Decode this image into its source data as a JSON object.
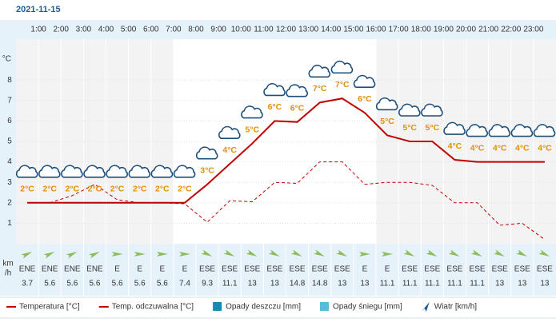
{
  "chart_data": {
    "type": "line",
    "date": "2021-11-15",
    "categories": [
      null,
      "1:00",
      "2:00",
      "3:00",
      "4:00",
      "5:00",
      "6:00",
      "7:00",
      "8:00",
      "9:00",
      "10:00",
      "11:00",
      "12:00",
      "13:00",
      "14:00",
      "15:00",
      "16:00",
      "17:00",
      "18:00",
      "19:00",
      "20:00",
      "21:00",
      "22:00",
      "23:00"
    ],
    "ylabel": "°C",
    "ylim": [
      0,
      10
    ],
    "yticks": [
      1,
      2,
      3,
      4,
      5,
      6,
      7,
      8
    ],
    "grid": true,
    "series": [
      {
        "name": "Temperatura [°C]",
        "color": "#c00000",
        "dash": false,
        "values": [
          2.0,
          2.0,
          2.0,
          2.0,
          2.0,
          2.0,
          2.0,
          2.0,
          2.9,
          3.9,
          4.9,
          6.0,
          5.95,
          6.9,
          7.1,
          6.4,
          5.3,
          5.0,
          5.0,
          4.1,
          4.0,
          4.0,
          4.0,
          4.0
        ],
        "value_labels": [
          "2°C",
          "2°C",
          "2°C",
          "2°C",
          "2°C",
          "2°C",
          "2°C",
          "2°C",
          "3°C",
          "4°C",
          "5°C",
          "6°C",
          "6°C",
          "7°C",
          "7°C",
          "6°C",
          "5°C",
          "5°C",
          "5°C",
          "4°C",
          "4°C",
          "4°C",
          "4°C",
          "4°C"
        ]
      },
      {
        "name": "Temp. odczuwalna [°C]",
        "color": "#c00000",
        "dash": true,
        "values": [
          2.0,
          2.0,
          2.35,
          2.9,
          2.15,
          2.0,
          2.0,
          1.95,
          1.05,
          2.1,
          2.05,
          3.0,
          2.95,
          4.0,
          4.0,
          2.9,
          3.0,
          3.0,
          2.85,
          2.0,
          2.0,
          0.9,
          1.0,
          0.2
        ]
      }
    ],
    "wind_unit": [
      "km",
      "/h"
    ],
    "wind_dir": [
      "ENE",
      "ENE",
      "ENE",
      "ENE",
      "E",
      "E",
      "E",
      "E",
      "ESE",
      "ESE",
      "ESE",
      "ESE",
      "ESE",
      "ESE",
      "ESE",
      "E",
      "E",
      "ESE",
      "ESE",
      "ESE",
      "ESE",
      "ESE",
      "ESE",
      "ESE"
    ],
    "wind_speed": [
      3.7,
      5.6,
      5.6,
      5.6,
      5.6,
      5.6,
      5.6,
      7.4,
      9.3,
      11.1,
      13,
      13,
      14.8,
      14.8,
      13,
      13,
      11.1,
      11.1,
      11.1,
      11.1,
      11.1,
      13,
      13,
      13
    ],
    "legend_extra": [
      {
        "name": "Opady deszczu [mm]",
        "color": "#1a88b4"
      },
      {
        "name": "Opady śniegu [mm]",
        "color": "#55bcd9"
      },
      {
        "name": "Wiatr [km/h]",
        "color": "#1d5c96"
      }
    ]
  }
}
